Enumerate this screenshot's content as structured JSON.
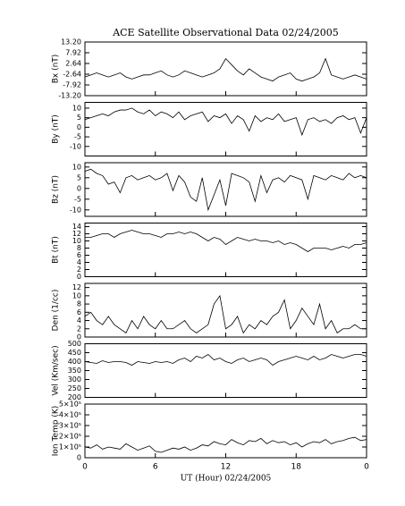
{
  "chart_data": [
    {
      "type": "line",
      "title": "ACE Satellite Observational Data   02/24/2005",
      "ylabel": "Bx (nT)",
      "color": "#000000",
      "x": [
        0,
        0.5,
        1,
        1.5,
        2,
        2.5,
        3,
        3.5,
        4,
        4.5,
        5,
        5.5,
        6,
        6.5,
        7,
        7.5,
        8,
        8.5,
        9,
        9.5,
        10,
        10.5,
        11,
        11.5,
        12,
        12.5,
        13,
        13.5,
        14,
        14.5,
        15,
        15.5,
        16,
        16.5,
        17,
        17.5,
        18,
        18.5,
        19,
        19.5,
        20,
        20.5,
        21,
        21.5,
        22,
        22.5,
        23,
        23.5,
        24
      ],
      "xlim": [
        0,
        24
      ],
      "values": [
        -4,
        -3,
        -2,
        -3,
        -4,
        -3,
        -2,
        -4,
        -5,
        -4,
        -3,
        -3,
        -2,
        -1,
        -3,
        -4,
        -3,
        -1,
        -2,
        -3,
        -4,
        -3,
        -2,
        0,
        5,
        2,
        -1,
        -3,
        0,
        -2,
        -4,
        -5,
        -6,
        -4,
        -3,
        -2,
        -5,
        -6,
        -5,
        -4,
        -2,
        5,
        -3,
        -4,
        -5,
        -4,
        -3,
        -4,
        -5
      ],
      "ylim": [
        -13.2,
        13.2
      ],
      "yticks": [
        {
          "value": -13.2,
          "label": "-13.20"
        },
        -7.92,
        -2.64,
        2.64,
        7.92,
        {
          "value": 13.2,
          "label": "13.20"
        }
      ]
    },
    {
      "type": "line",
      "ylabel": "By (nT)",
      "color": "#000000",
      "x": [
        0,
        0.5,
        1,
        1.5,
        2,
        2.5,
        3,
        3.5,
        4,
        4.5,
        5,
        5.5,
        6,
        6.5,
        7,
        7.5,
        8,
        8.5,
        9,
        9.5,
        10,
        10.5,
        11,
        11.5,
        12,
        12.5,
        13,
        13.5,
        14,
        14.5,
        15,
        15.5,
        16,
        16.5,
        17,
        17.5,
        18,
        18.5,
        19,
        19.5,
        20,
        20.5,
        21,
        21.5,
        22,
        22.5,
        23,
        23.5,
        24
      ],
      "xlim": [
        0,
        24
      ],
      "values": [
        4,
        5,
        6,
        7,
        6,
        8,
        9,
        9,
        10,
        8,
        7,
        9,
        6,
        8,
        7,
        5,
        8,
        4,
        6,
        7,
        8,
        3,
        6,
        5,
        7,
        2,
        6,
        4,
        -2,
        6,
        3,
        5,
        4,
        7,
        3,
        4,
        5,
        -4,
        4,
        5,
        3,
        4,
        2,
        5,
        6,
        4,
        5,
        -3,
        5
      ],
      "ylim": [
        -15,
        13
      ],
      "yticks": [
        -10,
        -5,
        0,
        5,
        10
      ]
    },
    {
      "type": "line",
      "ylabel": "Bz (nT)",
      "color": "#000000",
      "x": [
        0,
        0.5,
        1,
        1.5,
        2,
        2.5,
        3,
        3.5,
        4,
        4.5,
        5,
        5.5,
        6,
        6.5,
        7,
        7.5,
        8,
        8.5,
        9,
        9.5,
        10,
        10.5,
        11,
        11.5,
        12,
        12.5,
        13,
        13.5,
        14,
        14.5,
        15,
        15.5,
        16,
        16.5,
        17,
        17.5,
        18,
        18.5,
        19,
        19.5,
        20,
        20.5,
        21,
        21.5,
        22,
        22.5,
        23,
        23.5,
        24
      ],
      "xlim": [
        0,
        24
      ],
      "values": [
        8,
        9,
        7,
        6,
        2,
        3,
        -2,
        5,
        6,
        4,
        5,
        6,
        4,
        5,
        7,
        -1,
        6,
        3,
        -4,
        -6,
        5,
        -10,
        -3,
        4,
        -8,
        7,
        6,
        5,
        3,
        -6,
        6,
        -2,
        4,
        5,
        3,
        6,
        5,
        4,
        -5,
        6,
        5,
        4,
        6,
        5,
        4,
        7,
        5,
        6,
        5
      ],
      "ylim": [
        -13,
        12
      ],
      "yticks": [
        -10,
        -5,
        0,
        5,
        10
      ]
    },
    {
      "type": "line",
      "ylabel": "Bt (nT)",
      "color": "#000000",
      "x": [
        0,
        0.5,
        1,
        1.5,
        2,
        2.5,
        3,
        3.5,
        4,
        4.5,
        5,
        5.5,
        6,
        6.5,
        7,
        7.5,
        8,
        8.5,
        9,
        9.5,
        10,
        10.5,
        11,
        11.5,
        12,
        12.5,
        13,
        13.5,
        14,
        14.5,
        15,
        15.5,
        16,
        16.5,
        17,
        17.5,
        18,
        18.5,
        19,
        19.5,
        20,
        20.5,
        21,
        21.5,
        22,
        22.5,
        23,
        23.5,
        24
      ],
      "xlim": [
        0,
        24
      ],
      "values": [
        11,
        11,
        11.5,
        12,
        12,
        11,
        12,
        12.5,
        13,
        12.5,
        12,
        12,
        11.5,
        11,
        12,
        12,
        12.5,
        12,
        12.5,
        12,
        11,
        10,
        11,
        10.5,
        9,
        10,
        11,
        10.5,
        10,
        10.5,
        10,
        10,
        9.5,
        10,
        9,
        9.5,
        9,
        8,
        7,
        8,
        8,
        8,
        7.5,
        8,
        8.5,
        8,
        9,
        9,
        9.5
      ],
      "ylim": [
        0,
        15
      ],
      "yticks": [
        0,
        2,
        4,
        6,
        8,
        10,
        12,
        14
      ]
    },
    {
      "type": "line",
      "ylabel": "Den (1/cc)",
      "color": "#000000",
      "x": [
        0,
        0.5,
        1,
        1.5,
        2,
        2.5,
        3,
        3.5,
        4,
        4.5,
        5,
        5.5,
        6,
        6.5,
        7,
        7.5,
        8,
        8.5,
        9,
        9.5,
        10,
        10.5,
        11,
        11.5,
        12,
        12.5,
        13,
        13.5,
        14,
        14.5,
        15,
        15.5,
        16,
        16.5,
        17,
        17.5,
        18,
        18.5,
        19,
        19.5,
        20,
        20.5,
        21,
        21.5,
        22,
        22.5,
        23,
        23.5,
        24
      ],
      "xlim": [
        0,
        24
      ],
      "values": [
        5,
        6,
        4,
        3,
        5,
        3,
        2,
        1,
        4,
        2,
        5,
        3,
        2,
        4,
        2,
        2,
        3,
        4,
        2,
        1,
        2,
        3,
        8,
        10,
        2,
        3,
        5,
        1,
        3,
        2,
        4,
        3,
        5,
        6,
        9,
        2,
        4,
        7,
        5,
        3,
        8,
        2,
        4,
        1,
        2,
        2,
        3,
        2,
        2
      ],
      "ylim": [
        0,
        13
      ],
      "yticks": [
        0,
        2,
        4,
        6,
        8,
        10,
        12
      ]
    },
    {
      "type": "line",
      "ylabel": "Vel (Km/sec)",
      "color": "#000000",
      "x": [
        0,
        0.5,
        1,
        1.5,
        2,
        2.5,
        3,
        3.5,
        4,
        4.5,
        5,
        5.5,
        6,
        6.5,
        7,
        7.5,
        8,
        8.5,
        9,
        9.5,
        10,
        10.5,
        11,
        11.5,
        12,
        12.5,
        13,
        13.5,
        14,
        14.5,
        15,
        15.5,
        16,
        16.5,
        17,
        17.5,
        18,
        18.5,
        19,
        19.5,
        20,
        20.5,
        21,
        21.5,
        22,
        22.5,
        23,
        23.5,
        24
      ],
      "xlim": [
        0,
        24
      ],
      "values": [
        400,
        395,
        390,
        405,
        395,
        400,
        400,
        395,
        380,
        400,
        395,
        390,
        400,
        395,
        400,
        390,
        410,
        420,
        400,
        430,
        420,
        440,
        410,
        420,
        400,
        390,
        410,
        420,
        400,
        410,
        420,
        410,
        380,
        400,
        410,
        420,
        430,
        420,
        410,
        430,
        410,
        420,
        440,
        430,
        420,
        430,
        440,
        440,
        430
      ],
      "ylim": [
        200,
        500
      ],
      "yticks": [
        200,
        250,
        300,
        350,
        400,
        450,
        500
      ]
    },
    {
      "type": "line",
      "ylabel": "Ion Temp (K)",
      "xlabel": "UT (Hour)  02/24/2005",
      "color": "#000000",
      "x": [
        0,
        0.5,
        1,
        1.5,
        2,
        2.5,
        3,
        3.5,
        4,
        4.5,
        5,
        5.5,
        6,
        6.5,
        7,
        7.5,
        8,
        8.5,
        9,
        9.5,
        10,
        10.5,
        11,
        11.5,
        12,
        12.5,
        13,
        13.5,
        14,
        14.5,
        15,
        15.5,
        16,
        16.5,
        17,
        17.5,
        18,
        18.5,
        19,
        19.5,
        20,
        20.5,
        21,
        21.5,
        22,
        22.5,
        23,
        23.5,
        24
      ],
      "xlim": [
        0,
        24
      ],
      "xticks": [
        0,
        6,
        12,
        18,
        {
          "value": 24,
          "label": "0"
        }
      ],
      "values": [
        100000,
        90000,
        120000,
        80000,
        100000,
        90000,
        80000,
        130000,
        100000,
        70000,
        90000,
        110000,
        60000,
        50000,
        70000,
        90000,
        80000,
        100000,
        70000,
        90000,
        120000,
        110000,
        150000,
        130000,
        120000,
        170000,
        140000,
        120000,
        160000,
        150000,
        180000,
        130000,
        160000,
        140000,
        150000,
        120000,
        140000,
        100000,
        130000,
        150000,
        140000,
        170000,
        130000,
        150000,
        160000,
        180000,
        190000,
        160000,
        170000
      ],
      "ylim": [
        0,
        500000
      ],
      "yticks": [
        0,
        {
          "value": 100000,
          "label": "1×10⁵"
        },
        {
          "value": 200000,
          "label": "2×10⁵"
        },
        {
          "value": 300000,
          "label": "3×10⁵"
        },
        {
          "value": 400000,
          "label": "4×10⁵"
        },
        {
          "value": 500000,
          "label": "5×10⁵"
        }
      ]
    }
  ]
}
